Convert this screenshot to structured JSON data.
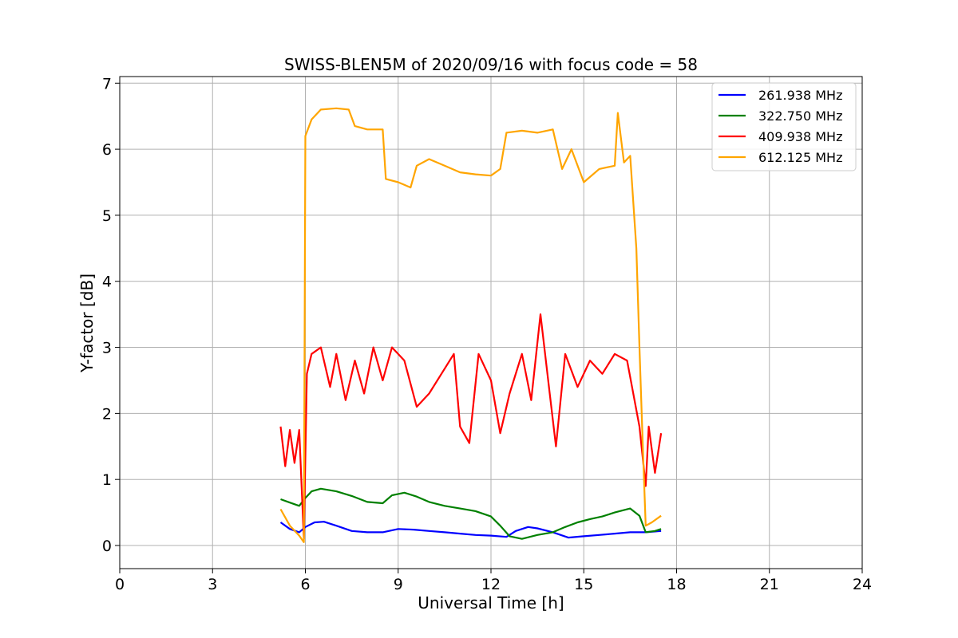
{
  "chart_data": {
    "type": "line",
    "title": "SWISS-BLEN5M of 2020/09/16 with focus code = 58",
    "xlabel": "Universal Time [h]",
    "ylabel": "Y-factor [dB]",
    "xlim": [
      0,
      24
    ],
    "ylim": [
      -0.35,
      7.1
    ],
    "xticks": [
      0,
      3,
      6,
      9,
      12,
      15,
      18,
      21,
      24
    ],
    "yticks": [
      0,
      1,
      2,
      3,
      4,
      5,
      6,
      7
    ],
    "grid": true,
    "legend_position": "top-right",
    "series": [
      {
        "name": "261.938 MHz",
        "color": "#0000ff",
        "points": [
          [
            5.2,
            0.35
          ],
          [
            5.5,
            0.25
          ],
          [
            5.8,
            0.2
          ],
          [
            6.0,
            0.28
          ],
          [
            6.3,
            0.35
          ],
          [
            6.6,
            0.36
          ],
          [
            7.0,
            0.3
          ],
          [
            7.5,
            0.22
          ],
          [
            8.0,
            0.2
          ],
          [
            8.5,
            0.2
          ],
          [
            9.0,
            0.25
          ],
          [
            9.5,
            0.24
          ],
          [
            10.0,
            0.22
          ],
          [
            10.5,
            0.2
          ],
          [
            11.0,
            0.18
          ],
          [
            11.5,
            0.16
          ],
          [
            12.0,
            0.15
          ],
          [
            12.5,
            0.13
          ],
          [
            12.8,
            0.22
          ],
          [
            13.2,
            0.28
          ],
          [
            13.5,
            0.26
          ],
          [
            14.0,
            0.2
          ],
          [
            14.5,
            0.12
          ],
          [
            15.0,
            0.14
          ],
          [
            15.5,
            0.16
          ],
          [
            16.0,
            0.18
          ],
          [
            16.5,
            0.2
          ],
          [
            17.0,
            0.2
          ],
          [
            17.5,
            0.22
          ]
        ]
      },
      {
        "name": "322.750 MHz",
        "color": "#008000",
        "points": [
          [
            5.2,
            0.7
          ],
          [
            5.5,
            0.65
          ],
          [
            5.8,
            0.6
          ],
          [
            6.0,
            0.72
          ],
          [
            6.2,
            0.82
          ],
          [
            6.5,
            0.86
          ],
          [
            7.0,
            0.82
          ],
          [
            7.5,
            0.75
          ],
          [
            8.0,
            0.66
          ],
          [
            8.5,
            0.64
          ],
          [
            8.8,
            0.76
          ],
          [
            9.2,
            0.8
          ],
          [
            9.6,
            0.74
          ],
          [
            10.0,
            0.66
          ],
          [
            10.5,
            0.6
          ],
          [
            11.0,
            0.56
          ],
          [
            11.5,
            0.52
          ],
          [
            12.0,
            0.44
          ],
          [
            12.3,
            0.3
          ],
          [
            12.6,
            0.14
          ],
          [
            13.0,
            0.1
          ],
          [
            13.5,
            0.16
          ],
          [
            14.0,
            0.2
          ],
          [
            14.4,
            0.28
          ],
          [
            14.8,
            0.35
          ],
          [
            15.2,
            0.4
          ],
          [
            15.6,
            0.44
          ],
          [
            16.0,
            0.5
          ],
          [
            16.5,
            0.56
          ],
          [
            16.8,
            0.45
          ],
          [
            17.0,
            0.2
          ],
          [
            17.3,
            0.22
          ],
          [
            17.5,
            0.25
          ]
        ]
      },
      {
        "name": "409.938 MHz",
        "color": "#ff0000",
        "points": [
          [
            5.2,
            1.8
          ],
          [
            5.35,
            1.2
          ],
          [
            5.5,
            1.75
          ],
          [
            5.65,
            1.25
          ],
          [
            5.8,
            1.75
          ],
          [
            5.95,
            0.1
          ],
          [
            6.05,
            2.6
          ],
          [
            6.2,
            2.9
          ],
          [
            6.5,
            3.0
          ],
          [
            6.8,
            2.4
          ],
          [
            7.0,
            2.9
          ],
          [
            7.3,
            2.2
          ],
          [
            7.6,
            2.8
          ],
          [
            7.9,
            2.3
          ],
          [
            8.2,
            3.0
          ],
          [
            8.5,
            2.5
          ],
          [
            8.8,
            3.0
          ],
          [
            9.2,
            2.8
          ],
          [
            9.6,
            2.1
          ],
          [
            10.0,
            2.3
          ],
          [
            10.4,
            2.6
          ],
          [
            10.8,
            2.9
          ],
          [
            11.0,
            1.8
          ],
          [
            11.3,
            1.55
          ],
          [
            11.6,
            2.9
          ],
          [
            12.0,
            2.5
          ],
          [
            12.3,
            1.7
          ],
          [
            12.6,
            2.3
          ],
          [
            13.0,
            2.9
          ],
          [
            13.3,
            2.2
          ],
          [
            13.6,
            3.5
          ],
          [
            13.9,
            2.3
          ],
          [
            14.1,
            1.5
          ],
          [
            14.4,
            2.9
          ],
          [
            14.8,
            2.4
          ],
          [
            15.2,
            2.8
          ],
          [
            15.6,
            2.6
          ],
          [
            16.0,
            2.9
          ],
          [
            16.4,
            2.8
          ],
          [
            16.8,
            1.8
          ],
          [
            17.0,
            0.9
          ],
          [
            17.1,
            1.8
          ],
          [
            17.3,
            1.1
          ],
          [
            17.5,
            1.7
          ]
        ]
      },
      {
        "name": "612.125 MHz",
        "color": "#ffa500",
        "points": [
          [
            5.2,
            0.55
          ],
          [
            5.5,
            0.3
          ],
          [
            5.8,
            0.15
          ],
          [
            5.95,
            0.05
          ],
          [
            6.0,
            6.2
          ],
          [
            6.2,
            6.45
          ],
          [
            6.5,
            6.6
          ],
          [
            7.0,
            6.62
          ],
          [
            7.4,
            6.6
          ],
          [
            7.6,
            6.35
          ],
          [
            8.0,
            6.3
          ],
          [
            8.5,
            6.3
          ],
          [
            8.6,
            5.55
          ],
          [
            9.0,
            5.5
          ],
          [
            9.4,
            5.42
          ],
          [
            9.6,
            5.75
          ],
          [
            10.0,
            5.85
          ],
          [
            10.5,
            5.75
          ],
          [
            11.0,
            5.65
          ],
          [
            11.5,
            5.62
          ],
          [
            12.0,
            5.6
          ],
          [
            12.3,
            5.7
          ],
          [
            12.5,
            6.25
          ],
          [
            13.0,
            6.28
          ],
          [
            13.5,
            6.25
          ],
          [
            14.0,
            6.3
          ],
          [
            14.3,
            5.7
          ],
          [
            14.6,
            6.0
          ],
          [
            15.0,
            5.5
          ],
          [
            15.5,
            5.7
          ],
          [
            16.0,
            5.75
          ],
          [
            16.1,
            6.55
          ],
          [
            16.3,
            5.8
          ],
          [
            16.5,
            5.9
          ],
          [
            16.7,
            4.5
          ],
          [
            16.8,
            3.0
          ],
          [
            16.9,
            1.6
          ],
          [
            17.0,
            0.3
          ],
          [
            17.2,
            0.35
          ],
          [
            17.5,
            0.45
          ]
        ]
      }
    ]
  }
}
